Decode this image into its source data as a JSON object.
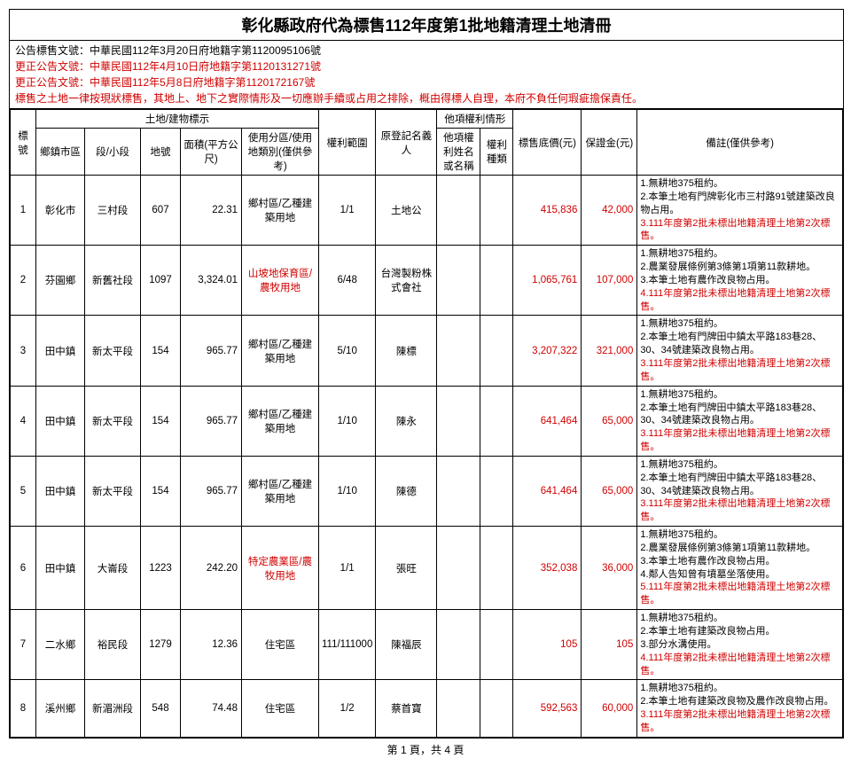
{
  "title": "彰化縣政府代為標售112年度第1批地籍清理土地清冊",
  "header": {
    "line1": "公告標售文號：中華民國112年3月20日府地籍字第1120095106號",
    "line2": "更正公告文號：中華民國112年4月10日府地籍字第1120131271號",
    "line3": "更正公告文號：中華民國112年5月8日府地籍字第1120172167號",
    "line4": "標售之土地一律按現狀標售，其地上、地下之實際情形及一切應辦手續或占用之排除，概由得標人自理，本府不負任何瑕疵擔保責任。"
  },
  "columns": {
    "no": "標號",
    "land_group": "土地/建物標示",
    "town": "鄉鎮市區",
    "section": "段/小段",
    "lot": "地號",
    "area": "面積(平方公尺)",
    "use": "使用分區/使用地類別(僅供參考)",
    "scope": "權利範圍",
    "orig_owner": "原登記名義人",
    "other_group": "他項權利情形",
    "other_name": "他項權利姓名或名稱",
    "other_type": "權利種類",
    "price": "標售底價(元)",
    "deposit": "保證金(元)",
    "remarks": "備註(僅供參考)"
  },
  "rows": [
    {
      "no": "1",
      "town": "彰化市",
      "section": "三村段",
      "lot": "607",
      "area": "22.31",
      "use": "鄉村區/乙種建築用地",
      "use_red": false,
      "scope": "1/1",
      "owner": "土地公",
      "oname": "",
      "otype": "",
      "price": "415,836",
      "deposit": "42,000",
      "remarks": [
        {
          "t": "1.無耕地375租約。",
          "r": false
        },
        {
          "t": "2.本筆土地有門牌彰化市三村路91號建築改良物占用。",
          "r": false
        },
        {
          "t": "3.111年度第2批未標出地籍清理土地第2次標售。",
          "r": true
        }
      ]
    },
    {
      "no": "2",
      "town": "芬園鄉",
      "section": "新舊社段",
      "lot": "1097",
      "area": "3,324.01",
      "use": "山坡地保育區/農牧用地",
      "use_red": true,
      "scope": "6/48",
      "owner": "台灣製粉株式會社",
      "oname": "",
      "otype": "",
      "price": "1,065,761",
      "deposit": "107,000",
      "remarks": [
        {
          "t": "1.無耕地375租約。",
          "r": false
        },
        {
          "t": "2.農業發展條例第3條第1項第11款耕地。",
          "r": false
        },
        {
          "t": "3.本筆土地有農作改良物占用。",
          "r": false
        },
        {
          "t": "4.111年度第2批未標出地籍清理土地第2次標售。",
          "r": true
        }
      ]
    },
    {
      "no": "3",
      "town": "田中鎮",
      "section": "新太平段",
      "lot": "154",
      "area": "965.77",
      "use": "鄉村區/乙種建築用地",
      "use_red": false,
      "scope": "5/10",
      "owner": "陳標",
      "oname": "",
      "otype": "",
      "price": "3,207,322",
      "deposit": "321,000",
      "remarks": [
        {
          "t": "1.無耕地375租約。",
          "r": false
        },
        {
          "t": "2.本筆土地有門牌田中鎮太平路183巷28、30、34號建築改良物占用。",
          "r": false
        },
        {
          "t": "3.111年度第2批未標出地籍清理土地第2次標售。",
          "r": true
        }
      ]
    },
    {
      "no": "4",
      "town": "田中鎮",
      "section": "新太平段",
      "lot": "154",
      "area": "965.77",
      "use": "鄉村區/乙種建築用地",
      "use_red": false,
      "scope": "1/10",
      "owner": "陳永",
      "oname": "",
      "otype": "",
      "price": "641,464",
      "deposit": "65,000",
      "remarks": [
        {
          "t": "1.無耕地375租約。",
          "r": false
        },
        {
          "t": "2.本筆土地有門牌田中鎮太平路183巷28、30、34號建築改良物占用。",
          "r": false
        },
        {
          "t": "3.111年度第2批未標出地籍清理土地第2次標售。",
          "r": true
        }
      ]
    },
    {
      "no": "5",
      "town": "田中鎮",
      "section": "新太平段",
      "lot": "154",
      "area": "965.77",
      "use": "鄉村區/乙種建築用地",
      "use_red": false,
      "scope": "1/10",
      "owner": "陳德",
      "oname": "",
      "otype": "",
      "price": "641,464",
      "deposit": "65,000",
      "remarks": [
        {
          "t": "1.無耕地375租約。",
          "r": false
        },
        {
          "t": "2.本筆土地有門牌田中鎮太平路183巷28、30、34號建築改良物占用。",
          "r": false
        },
        {
          "t": "3.111年度第2批未標出地籍清理土地第2次標售。",
          "r": true
        }
      ]
    },
    {
      "no": "6",
      "town": "田中鎮",
      "section": "大崙段",
      "lot": "1223",
      "area": "242.20",
      "use": "特定農業區/農牧用地",
      "use_red": true,
      "scope": "1/1",
      "owner": "張旺",
      "oname": "",
      "otype": "",
      "price": "352,038",
      "deposit": "36,000",
      "remarks": [
        {
          "t": "1.無耕地375租約。",
          "r": false
        },
        {
          "t": "2.農業發展條例第3條第1項第11款耕地。",
          "r": false
        },
        {
          "t": "3.本筆土地有農作改良物占用。",
          "r": false
        },
        {
          "t": "4.鄰人告知曾有墳墓坐落使用。",
          "r": false
        },
        {
          "t": "5.111年度第2批未標出地籍清理土地第2次標售。",
          "r": true
        }
      ]
    },
    {
      "no": "7",
      "town": "二水鄉",
      "section": "裕民段",
      "lot": "1279",
      "area": "12.36",
      "use": "住宅區",
      "use_red": false,
      "scope": "111/111000",
      "owner": "陳福辰",
      "oname": "",
      "otype": "",
      "price": "105",
      "deposit": "105",
      "remarks": [
        {
          "t": "1.無耕地375租約。",
          "r": false
        },
        {
          "t": "2.本筆土地有建築改良物占用。",
          "r": false
        },
        {
          "t": "3.部分水溝使用。",
          "r": false
        },
        {
          "t": "4.111年度第2批未標出地籍清理土地第2次標售。",
          "r": true
        }
      ]
    },
    {
      "no": "8",
      "town": "溪州鄉",
      "section": "新湄洲段",
      "lot": "548",
      "area": "74.48",
      "use": "住宅區",
      "use_red": false,
      "scope": "1/2",
      "owner": "蔡首寶",
      "oname": "",
      "otype": "",
      "price": "592,563",
      "deposit": "60,000",
      "remarks": [
        {
          "t": "1.無耕地375租約。",
          "r": false
        },
        {
          "t": "2.本筆土地有建築改良物及農作改良物占用。",
          "r": false
        },
        {
          "t": "3.111年度第2批未標出地籍清理土地第2次標售。",
          "r": true
        }
      ]
    }
  ],
  "footer": "第 1 頁，共 4 頁"
}
